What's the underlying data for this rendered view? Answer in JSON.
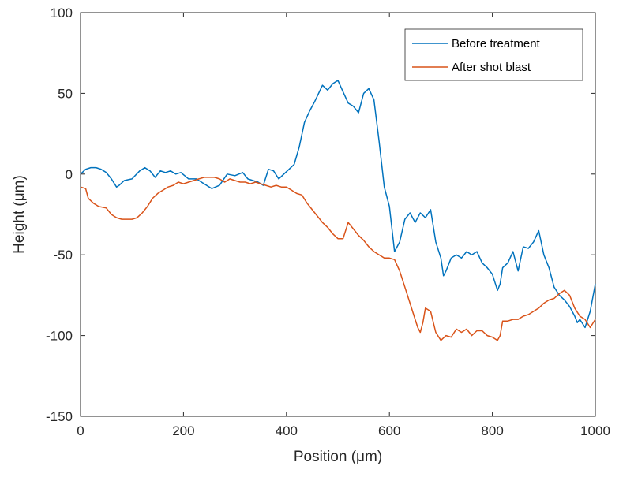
{
  "chart_data": {
    "type": "line",
    "xlabel": "Position (μm)",
    "ylabel": "Height (μm)",
    "xlim": [
      0,
      1000
    ],
    "ylim": [
      -150,
      100
    ],
    "xticks": [
      0,
      200,
      400,
      600,
      800,
      1000
    ],
    "yticks": [
      -150,
      -100,
      -50,
      0,
      50,
      100
    ],
    "grid": false,
    "legend_position": "top-right",
    "series": [
      {
        "name": "Before treatment",
        "color": "#0072BD",
        "x": [
          0,
          10,
          20,
          30,
          40,
          50,
          60,
          70,
          75,
          85,
          100,
          115,
          125,
          135,
          145,
          155,
          165,
          175,
          185,
          195,
          210,
          225,
          240,
          255,
          270,
          285,
          300,
          315,
          325,
          335,
          345,
          355,
          365,
          375,
          385,
          395,
          405,
          415,
          425,
          435,
          445,
          455,
          470,
          480,
          490,
          500,
          510,
          520,
          530,
          540,
          550,
          560,
          570,
          580,
          590,
          600,
          610,
          620,
          630,
          640,
          650,
          660,
          670,
          680,
          690,
          700,
          705,
          710,
          720,
          730,
          740,
          750,
          760,
          770,
          780,
          790,
          800,
          810,
          815,
          820,
          830,
          840,
          850,
          860,
          870,
          880,
          890,
          900,
          910,
          920,
          930,
          940,
          950,
          960,
          965,
          970,
          980,
          990,
          1000
        ],
        "y": [
          0,
          3,
          4,
          4,
          3,
          1,
          -3,
          -8,
          -7,
          -4,
          -3,
          2,
          4,
          2,
          -2,
          2,
          1,
          2,
          0,
          1,
          -3,
          -3,
          -6,
          -9,
          -7,
          0,
          -1,
          1,
          -3,
          -4,
          -5,
          -7,
          3,
          2,
          -3,
          0,
          3,
          6,
          17,
          32,
          39,
          45,
          55,
          52,
          56,
          58,
          51,
          44,
          42,
          38,
          50,
          53,
          46,
          20,
          -8,
          -20,
          -48,
          -42,
          -28,
          -24,
          -30,
          -24,
          -27,
          -22,
          -42,
          -52,
          -63,
          -60,
          -52,
          -50,
          -52,
          -48,
          -50,
          -48,
          -55,
          -58,
          -62,
          -72,
          -68,
          -58,
          -55,
          -48,
          -60,
          -45,
          -46,
          -42,
          -35,
          -50,
          -58,
          -70,
          -75,
          -78,
          -82,
          -88,
          -92,
          -90,
          -95,
          -85,
          -68
        ]
      },
      {
        "name": "After shot blast",
        "color": "#D95319",
        "x": [
          0,
          10,
          15,
          25,
          35,
          50,
          60,
          70,
          80,
          90,
          100,
          110,
          120,
          130,
          140,
          150,
          160,
          170,
          180,
          190,
          200,
          210,
          220,
          230,
          240,
          250,
          260,
          270,
          280,
          290,
          300,
          310,
          320,
          330,
          340,
          350,
          360,
          370,
          380,
          390,
          400,
          410,
          420,
          430,
          440,
          450,
          460,
          470,
          480,
          490,
          500,
          510,
          520,
          530,
          540,
          550,
          560,
          570,
          580,
          590,
          600,
          610,
          620,
          630,
          640,
          650,
          655,
          660,
          665,
          670,
          680,
          690,
          700,
          710,
          720,
          730,
          740,
          750,
          760,
          770,
          780,
          790,
          800,
          810,
          815,
          820,
          830,
          840,
          850,
          860,
          870,
          880,
          890,
          900,
          910,
          920,
          930,
          940,
          950,
          960,
          970,
          980,
          990,
          1000
        ],
        "y": [
          -8,
          -9,
          -15,
          -18,
          -20,
          -21,
          -25,
          -27,
          -28,
          -28,
          -28,
          -27,
          -24,
          -20,
          -15,
          -12,
          -10,
          -8,
          -7,
          -5,
          -6,
          -5,
          -4,
          -3,
          -2,
          -2,
          -2,
          -3,
          -5,
          -3,
          -4,
          -5,
          -5,
          -6,
          -5,
          -6,
          -7,
          -8,
          -7,
          -8,
          -8,
          -10,
          -12,
          -13,
          -18,
          -22,
          -26,
          -30,
          -33,
          -37,
          -40,
          -40,
          -30,
          -34,
          -38,
          -41,
          -45,
          -48,
          -50,
          -52,
          -52,
          -53,
          -60,
          -70,
          -80,
          -90,
          -95,
          -98,
          -92,
          -83,
          -85,
          -98,
          -103,
          -100,
          -101,
          -96,
          -98,
          -96,
          -100,
          -97,
          -97,
          -100,
          -101,
          -103,
          -100,
          -91,
          -91,
          -90,
          -90,
          -88,
          -87,
          -85,
          -83,
          -80,
          -78,
          -77,
          -74,
          -72,
          -75,
          -83,
          -88,
          -90,
          -95,
          -90
        ]
      }
    ]
  }
}
